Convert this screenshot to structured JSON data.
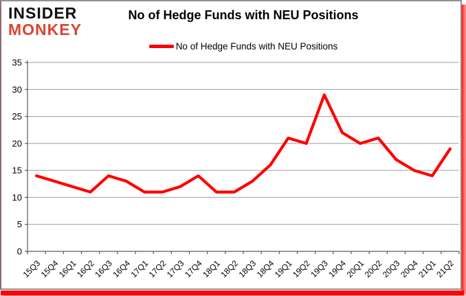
{
  "brand": {
    "line1": "INSIDER",
    "line2": "MONKEY",
    "line1_color": "#111111",
    "line2_color": "#d9452e"
  },
  "header": {
    "title": "No of Hedge Funds with NEU Positions"
  },
  "legend": {
    "label": "No of Hedge Funds with NEU Positions",
    "swatch_color": "#fe0000",
    "position": "top"
  },
  "chart_data": {
    "type": "line",
    "title": "No of Hedge Funds with NEU Positions",
    "categories": [
      "15Q3",
      "15Q4",
      "16Q1",
      "16Q2",
      "16Q3",
      "16Q4",
      "17Q1",
      "17Q2",
      "17Q3",
      "17Q4",
      "18Q1",
      "18Q2",
      "18Q3",
      "18Q4",
      "19Q1",
      "19Q2",
      "19Q3",
      "19Q4",
      "20Q1",
      "20Q2",
      "20Q3",
      "20Q4",
      "21Q1",
      "21Q2"
    ],
    "series": [
      {
        "name": "No of Hedge Funds with NEU Positions",
        "color": "#fe0000",
        "values": [
          14,
          13,
          12,
          11,
          14,
          13,
          11,
          11,
          12,
          14,
          11,
          11,
          13,
          16,
          21,
          20,
          29,
          22,
          20,
          21,
          17,
          15,
          14,
          19
        ]
      }
    ],
    "xlabel": "",
    "ylabel": "",
    "ylim": [
      0,
      35
    ],
    "ytick_step": 5,
    "grid": true,
    "grid_color": "#9b9b9b",
    "axis_color": "#595959",
    "tick_label_color": "#000000",
    "legend_position": "top"
  }
}
